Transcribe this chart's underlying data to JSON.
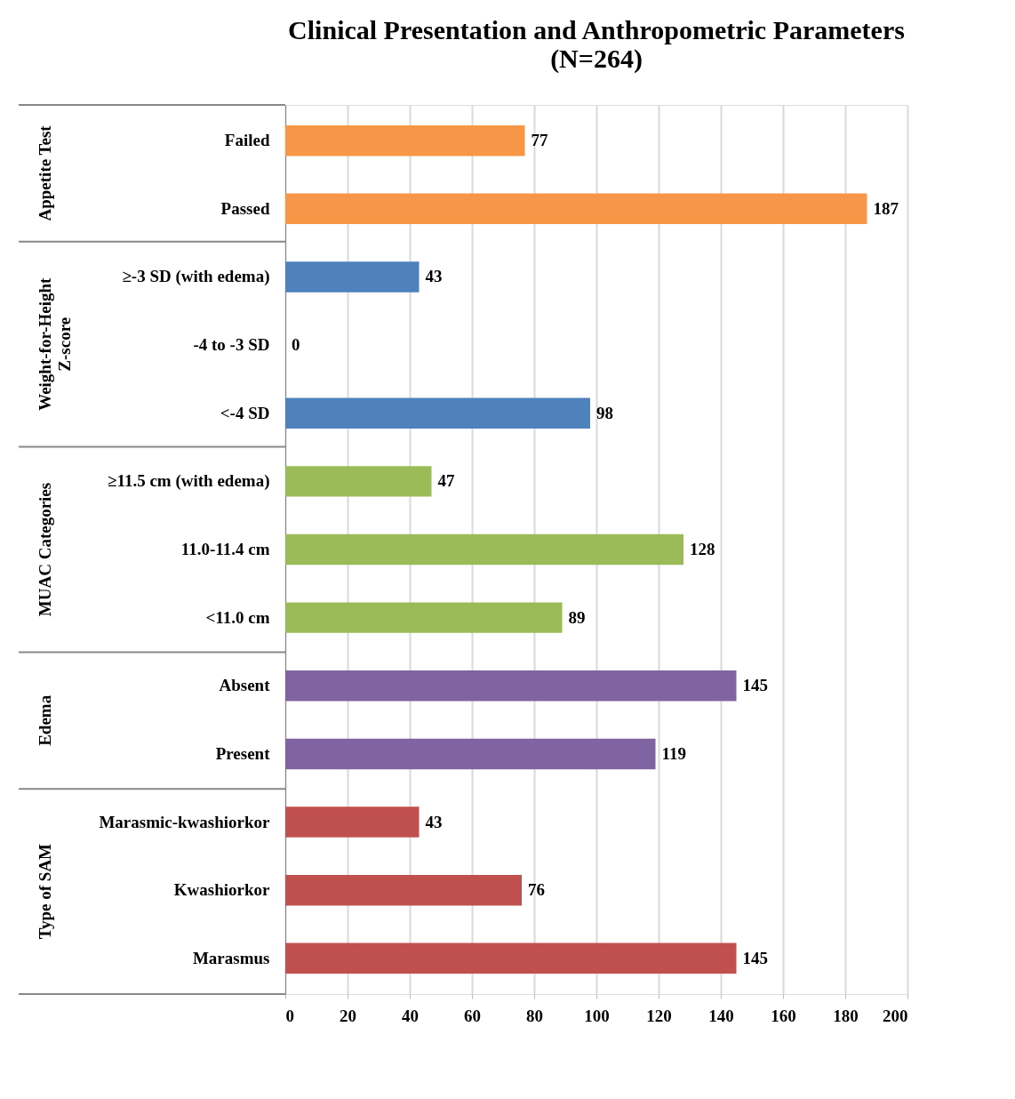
{
  "chart_data": {
    "type": "bar",
    "orientation": "horizontal",
    "title": "Clinical Presentation and Anthropometric Parameters (N=264)",
    "categories": [
      "Failed",
      "Passed",
      "≥-3 SD (with edema)",
      "-4 to -3 SD",
      "<-4 SD",
      "≥11.5 cm (with edema)",
      "11.0-11.4 cm",
      "<11.0 cm",
      "Absent",
      "Present",
      "Marasmic-kwashiorkor",
      "Kwashiorkor",
      "Marasmus"
    ],
    "series": [
      {
        "color": "#f79646",
        "values": [
          77,
          187,
          null,
          null,
          null,
          null,
          null,
          null,
          null,
          null,
          null,
          null,
          null
        ]
      },
      {
        "color": "#4f81bd",
        "values": [
          null,
          null,
          43,
          0,
          98,
          null,
          null,
          null,
          null,
          null,
          null,
          null,
          null
        ]
      },
      {
        "color": "#9bbb59",
        "values": [
          null,
          null,
          null,
          null,
          null,
          47,
          128,
          89,
          null,
          null,
          null,
          null,
          null
        ]
      },
      {
        "color": "#8064a2",
        "values": [
          null,
          null,
          null,
          null,
          null,
          null,
          null,
          null,
          145,
          119,
          null,
          null,
          null
        ]
      },
      {
        "color": "#c0504d",
        "values": [
          null,
          null,
          null,
          null,
          null,
          null,
          null,
          null,
          null,
          null,
          43,
          76,
          145
        ]
      }
    ],
    "annotations": [
      "Appetite Test",
      "Weight-for-Height Z-score",
      "MUAC Categories",
      "Edema",
      "Type of SAM"
    ],
    "xlim": [
      0,
      200
    ],
    "xticks": [
      0,
      20,
      40,
      60,
      80,
      100,
      120,
      140,
      160,
      180,
      200
    ],
    "grid": "x",
    "legend": false,
    "data_labels": true
  }
}
